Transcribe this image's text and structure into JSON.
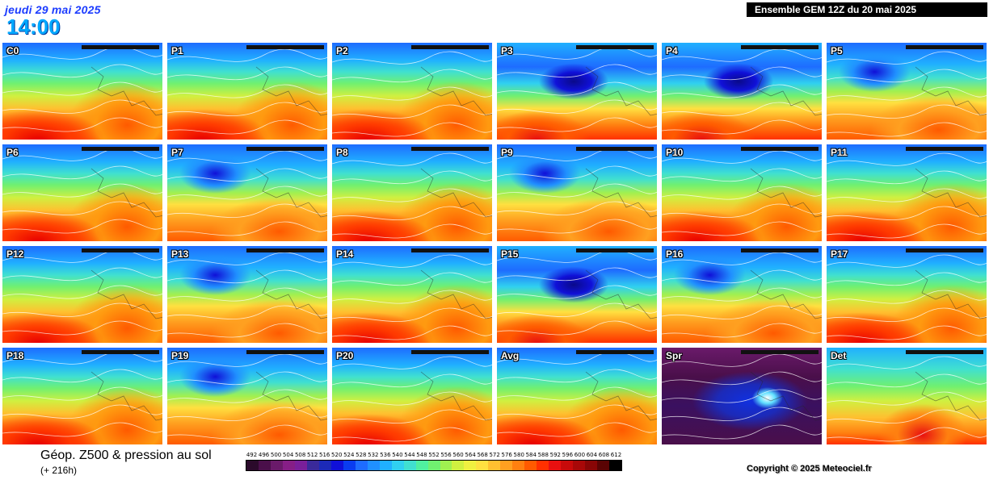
{
  "header": {
    "date": "jeudi 29 mai 2025",
    "time": "14:00",
    "run_info": "Ensemble GEM 12Z du 20 mai 2025"
  },
  "panels": [
    {
      "label": "C0",
      "style": "warm"
    },
    {
      "label": "P1",
      "style": "warm"
    },
    {
      "label": "P2",
      "style": "warm"
    },
    {
      "label": "P3",
      "style": "cold"
    },
    {
      "label": "P4",
      "style": "cold"
    },
    {
      "label": "P5",
      "style": "mid"
    },
    {
      "label": "P6",
      "style": "warm"
    },
    {
      "label": "P7",
      "style": "mid"
    },
    {
      "label": "P8",
      "style": "warm"
    },
    {
      "label": "P9",
      "style": "mid"
    },
    {
      "label": "P10",
      "style": "warm"
    },
    {
      "label": "P11",
      "style": "warm"
    },
    {
      "label": "P12",
      "style": "warm"
    },
    {
      "label": "P13",
      "style": "mid"
    },
    {
      "label": "P14",
      "style": "warm"
    },
    {
      "label": "P15",
      "style": "cold"
    },
    {
      "label": "P16",
      "style": "mid"
    },
    {
      "label": "P17",
      "style": "warm"
    },
    {
      "label": "P18",
      "style": "warm"
    },
    {
      "label": "P19",
      "style": "mid"
    },
    {
      "label": "P20",
      "style": "warm"
    },
    {
      "label": "Avg",
      "style": "warm"
    },
    {
      "label": "Spr",
      "style": "spread"
    },
    {
      "label": "Det",
      "style": "det"
    }
  ],
  "footer": {
    "title": "Géop. Z500 & pression au sol",
    "subtitle": "(+ 216h)",
    "copyright": "Copyright © 2025 Meteociel.fr"
  },
  "scale": {
    "values": [
      "492",
      "496",
      "500",
      "504",
      "508",
      "512",
      "516",
      "520",
      "524",
      "528",
      "532",
      "536",
      "540",
      "544",
      "548",
      "552",
      "556",
      "560",
      "564",
      "568",
      "572",
      "576",
      "580",
      "584",
      "588",
      "592",
      "596",
      "600",
      "604",
      "608",
      "612"
    ],
    "colors": [
      "#2b0a2b",
      "#4a0f4a",
      "#6a1a6a",
      "#861e86",
      "#7a1f9a",
      "#3a2a9a",
      "#1c2ab8",
      "#1010d8",
      "#0a3cf0",
      "#1e6cff",
      "#2090ff",
      "#20b0ff",
      "#30d0f0",
      "#40e0d0",
      "#50f0a0",
      "#70f070",
      "#a0f050",
      "#d0f040",
      "#f0f040",
      "#ffe040",
      "#ffc030",
      "#ffa020",
      "#ff8010",
      "#ff5a00",
      "#ff3000",
      "#e81010",
      "#c80a0a",
      "#a80808",
      "#880606",
      "#5a0404",
      "#000000"
    ]
  }
}
